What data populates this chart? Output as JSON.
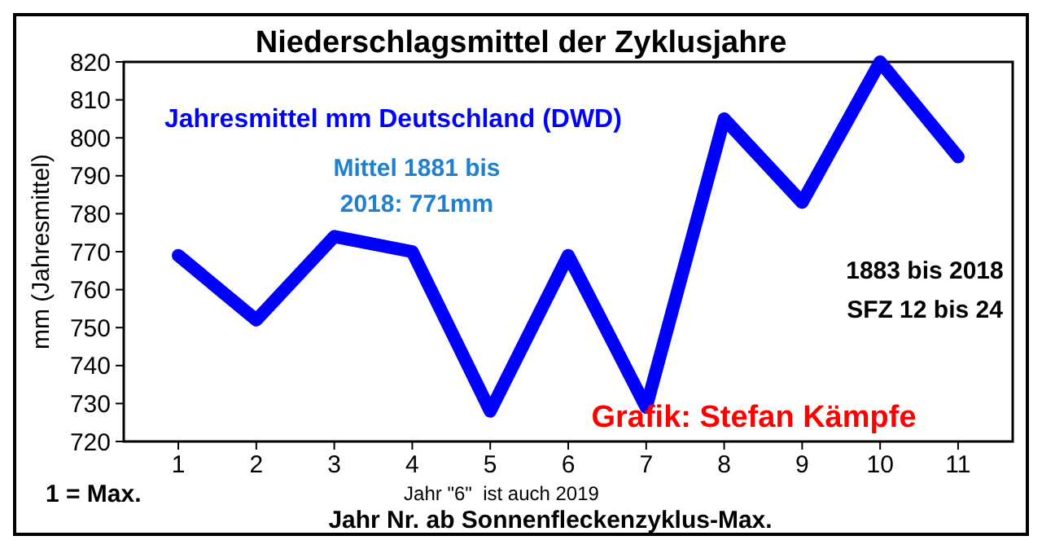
{
  "chart_data": {
    "type": "line",
    "title": "Niederschlagsmittel der Zyklusjahre",
    "xlabel": "Jahr Nr. ab Sonnenfleckenzyklus-Max.",
    "ylabel": "mm (Jahresmittel)",
    "categories": [
      "1",
      "2",
      "3",
      "4",
      "5",
      "6",
      "7",
      "8",
      "9",
      "10",
      "11"
    ],
    "series": [
      {
        "name": "Jahresmittel mm Deutschland (DWD)",
        "color": "#0000ff",
        "values": [
          769,
          752,
          774,
          770,
          728,
          769,
          729,
          805,
          783,
          820,
          795
        ]
      }
    ],
    "ylim": [
      720,
      820
    ],
    "yticks": [
      720,
      730,
      740,
      750,
      760,
      770,
      780,
      790,
      800,
      810,
      820
    ],
    "grid": false,
    "legend": "top left",
    "marker": "none",
    "line_style": "solid",
    "annotations": [
      "Mittel 1881 bis 2018: 771mm",
      "1883 bis 2018",
      "SFZ 12 bis 24",
      "Grafik: Stefan Kämpfe",
      "1 = Max.",
      "Jahr \"6\"  ist auch 2019"
    ]
  }
}
